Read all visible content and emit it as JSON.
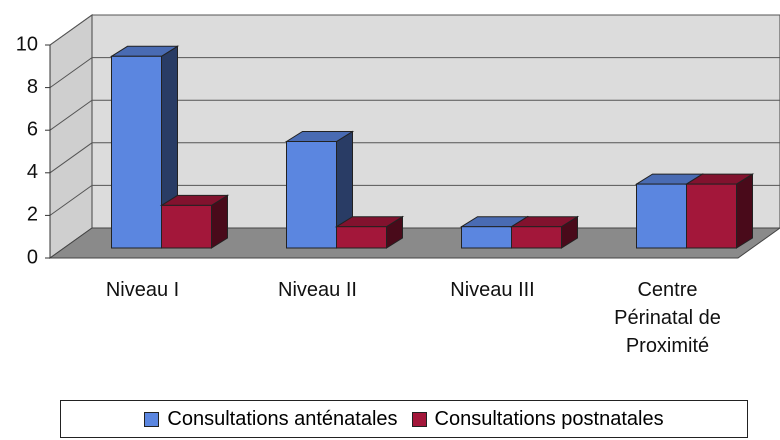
{
  "chart_data": {
    "type": "bar3d",
    "categories": [
      "Niveau I",
      "Niveau II",
      "Niveau III",
      "Centre Périnatal de Proximité"
    ],
    "series": [
      {
        "name": "Consultations anténatales",
        "color": "#5b86e0",
        "values": [
          9,
          5,
          1,
          3
        ]
      },
      {
        "name": "Consultations postnatales",
        "color": "#a3173a",
        "values": [
          2,
          1,
          1,
          3
        ]
      }
    ],
    "ylim": [
      0,
      10
    ],
    "yticks": [
      0,
      2,
      4,
      6,
      8,
      10
    ],
    "grid": true
  }
}
